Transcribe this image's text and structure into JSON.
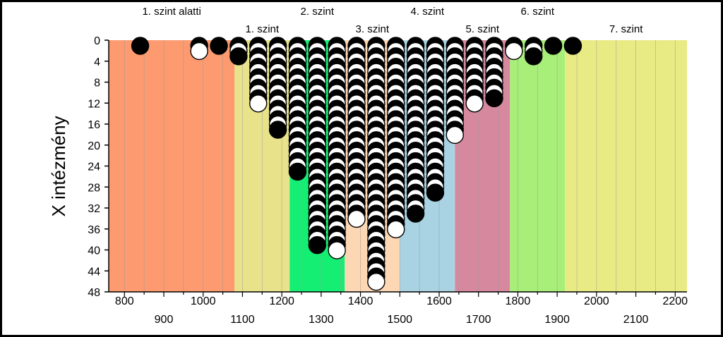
{
  "chart_data": {
    "type": "scatter",
    "xlabel": "",
    "ylabel": "X intézmény",
    "xlim": [
      760,
      2230
    ],
    "ylim": [
      0,
      48
    ],
    "y_ticks": [
      "0",
      "4",
      "8",
      "12",
      "16",
      "20",
      "24",
      "28",
      "32",
      "36",
      "40",
      "44",
      "48"
    ],
    "x_ticks_upper": [
      "800",
      "1000",
      "1200",
      "1400",
      "1600",
      "1800",
      "2000",
      "2200"
    ],
    "x_ticks_lower": [
      "900",
      "1100",
      "1300",
      "1500",
      "1700",
      "1900",
      "2100"
    ],
    "bands": [
      {
        "label": "1. szint alatti",
        "from": 760,
        "to": 1080,
        "color": "#fd9a70",
        "label_row": 1
      },
      {
        "label": "1. szint",
        "from": 1080,
        "to": 1220,
        "color": "#e8e38a",
        "label_row": 2
      },
      {
        "label": "2. szint",
        "from": 1220,
        "to": 1360,
        "color": "#14ef74",
        "label_row": 1
      },
      {
        "label": "3. szint",
        "from": 1360,
        "to": 1500,
        "color": "#fdd7b4",
        "label_row": 2
      },
      {
        "label": "4. szint",
        "from": 1500,
        "to": 1640,
        "color": "#a9d2e2",
        "label_row": 1
      },
      {
        "label": "5. szint",
        "from": 1640,
        "to": 1780,
        "color": "#d6899e",
        "label_row": 2
      },
      {
        "label": "6. szint",
        "from": 1780,
        "to": 1920,
        "color": "#a8ef7a",
        "label_row": 1
      },
      {
        "label": "7. szint",
        "from": 1920,
        "to": 2230,
        "color": "#e8eb84",
        "label_row": 2
      }
    ],
    "stacks": [
      {
        "x": 840,
        "count": 1,
        "last": "filled"
      },
      {
        "x": 990,
        "count": 2,
        "last": "open"
      },
      {
        "x": 1040,
        "count": 1,
        "last": "filled"
      },
      {
        "x": 1090,
        "count": 3,
        "last": "filled"
      },
      {
        "x": 1140,
        "count": 12,
        "last": "open"
      },
      {
        "x": 1190,
        "count": 17,
        "last": "filled"
      },
      {
        "x": 1240,
        "count": 25,
        "last": "filled"
      },
      {
        "x": 1290,
        "count": 39,
        "last": "filled"
      },
      {
        "x": 1340,
        "count": 40,
        "last": "open"
      },
      {
        "x": 1390,
        "count": 34,
        "last": "open"
      },
      {
        "x": 1440,
        "count": 46,
        "last": "open"
      },
      {
        "x": 1490,
        "count": 36,
        "last": "open"
      },
      {
        "x": 1540,
        "count": 33,
        "last": "filled"
      },
      {
        "x": 1590,
        "count": 29,
        "last": "filled"
      },
      {
        "x": 1640,
        "count": 18,
        "last": "open"
      },
      {
        "x": 1690,
        "count": 12,
        "last": "open"
      },
      {
        "x": 1740,
        "count": 11,
        "last": "filled"
      },
      {
        "x": 1790,
        "count": 2,
        "last": "open"
      },
      {
        "x": 1840,
        "count": 3,
        "last": "filled"
      },
      {
        "x": 1890,
        "count": 1,
        "last": "filled"
      },
      {
        "x": 1940,
        "count": 1,
        "last": "filled"
      }
    ]
  }
}
